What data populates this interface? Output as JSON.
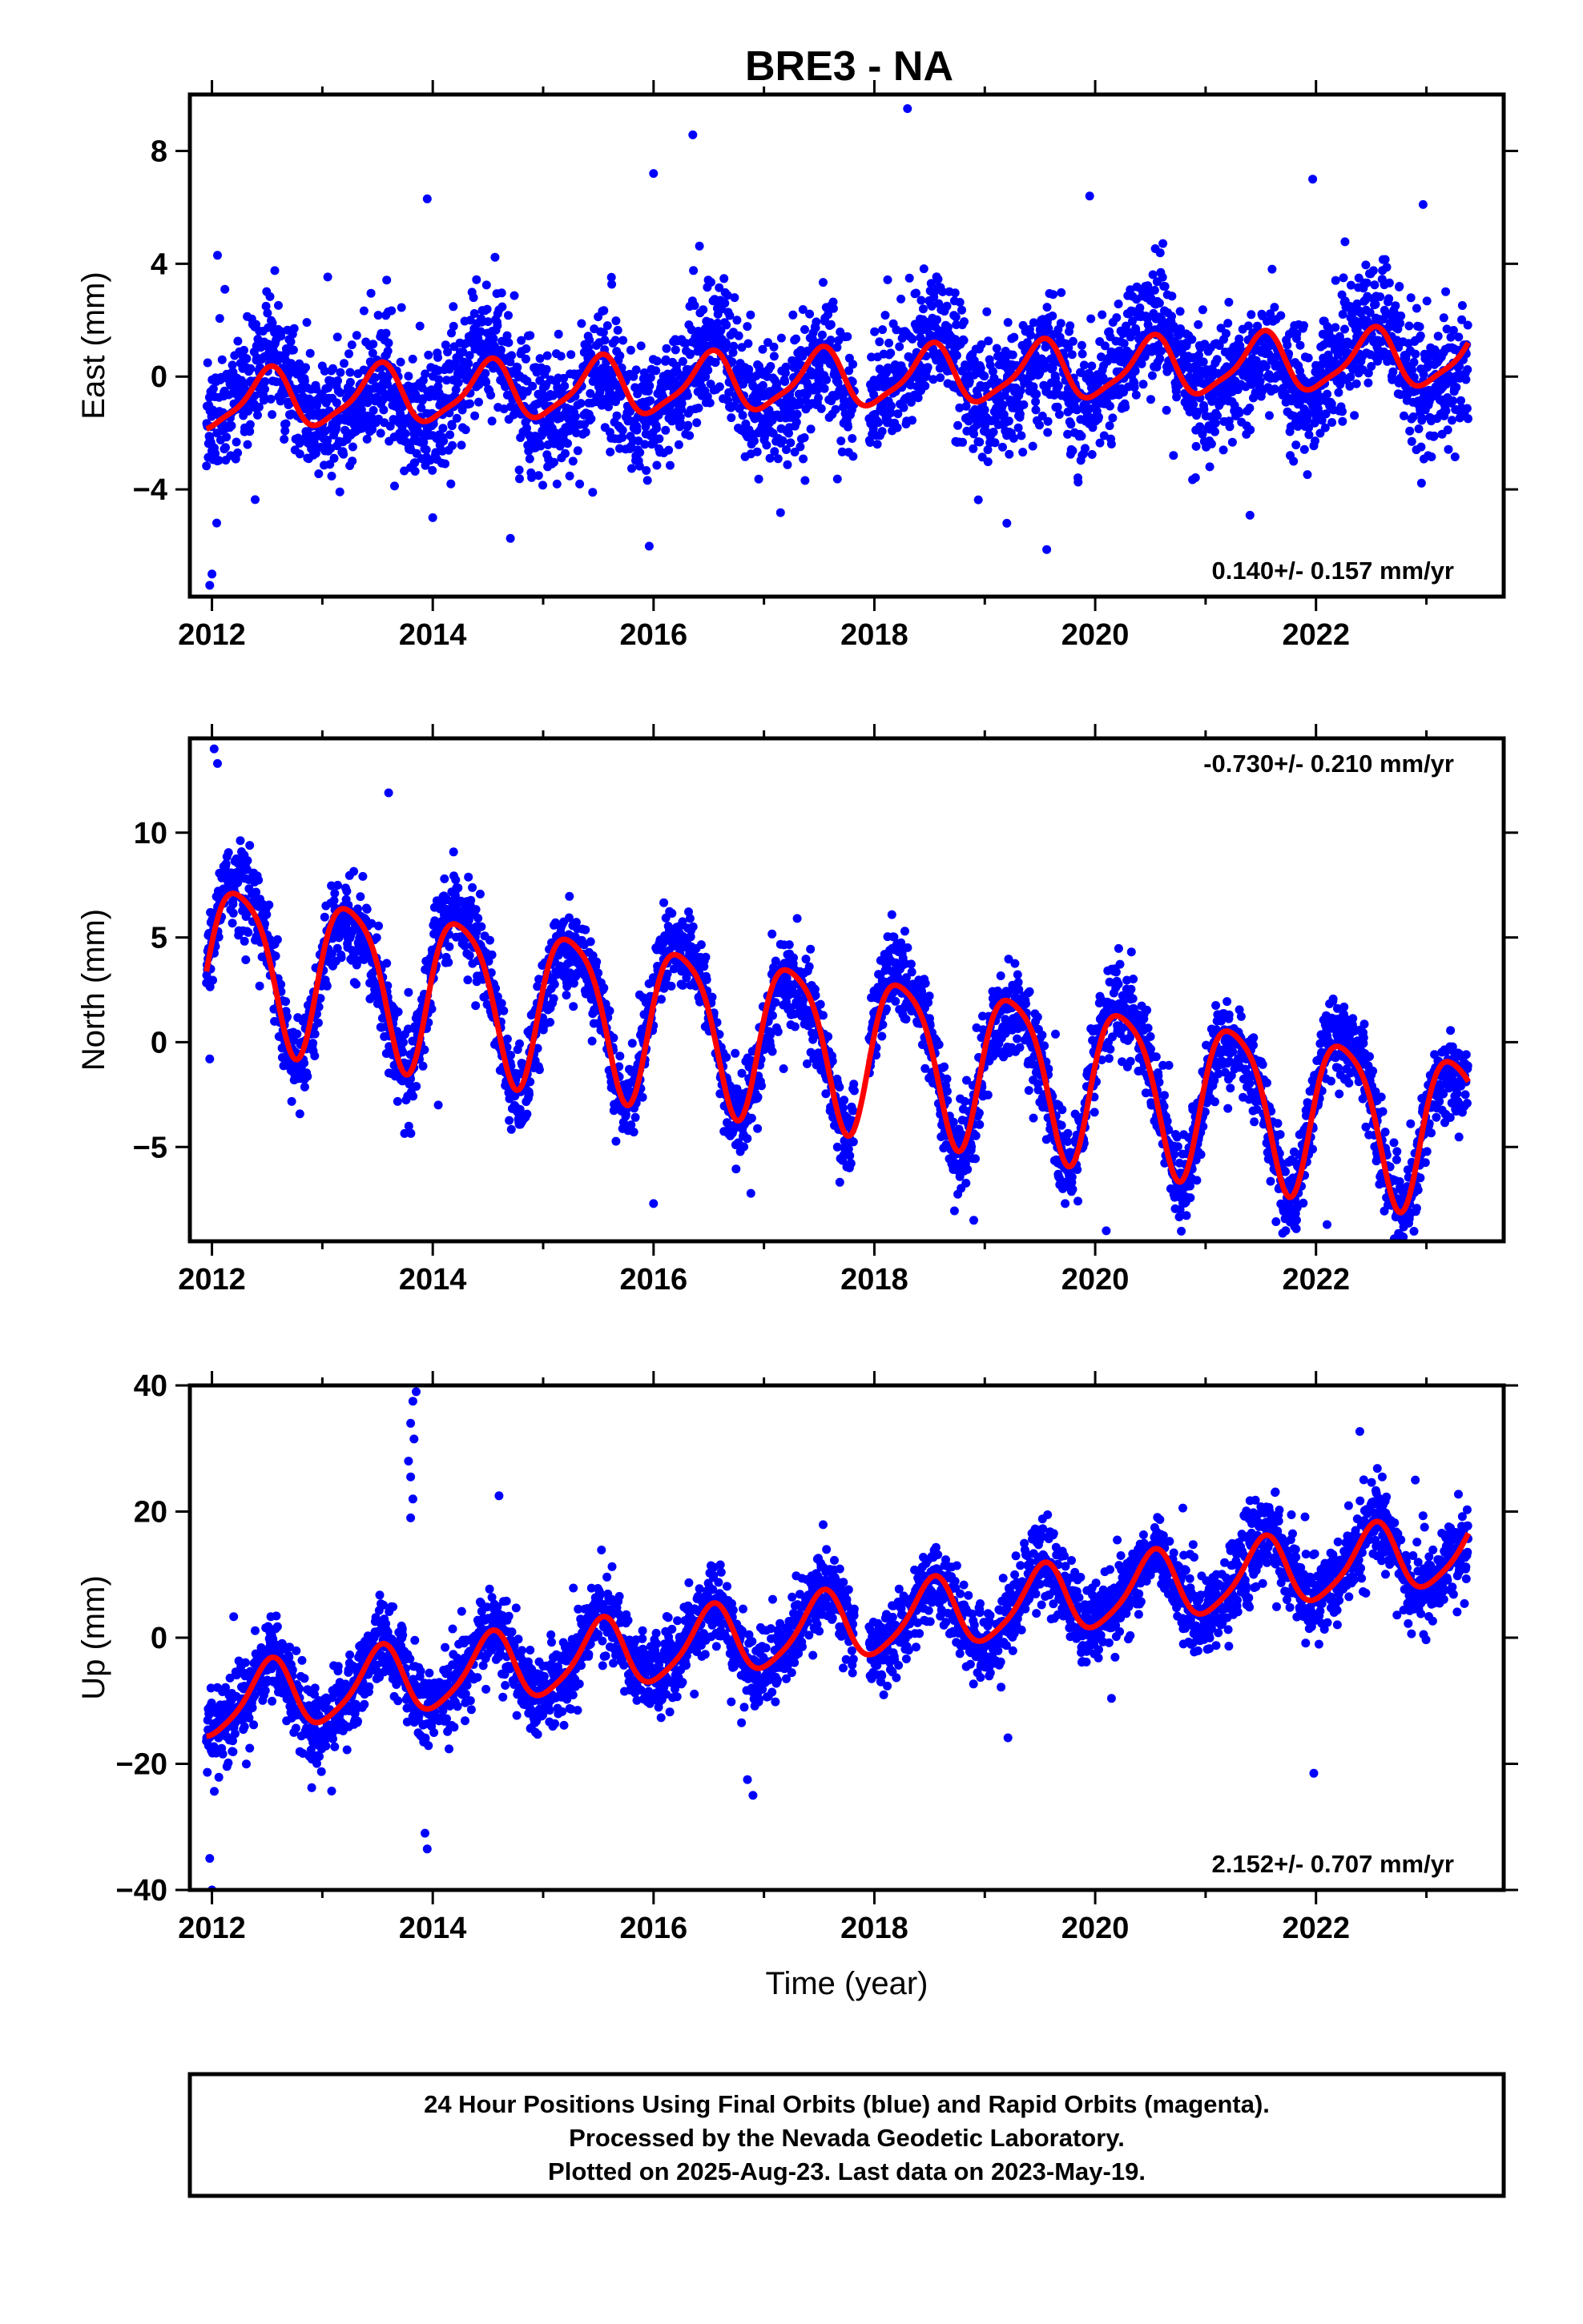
{
  "title": "BRE3 - NA",
  "chart_data": [
    {
      "type": "scatter",
      "panel": "east",
      "ylabel": "East (mm)",
      "xlabel": "",
      "xlim": [
        2011.8,
        2023.7
      ],
      "ylim": [
        -7.8,
        10.0
      ],
      "xticks": [
        2012,
        2014,
        2016,
        2018,
        2020,
        2022
      ],
      "yticks": [
        -4,
        0,
        4,
        8
      ],
      "grid": false,
      "rate_label": "0.140+/- 0.157 mm/yr",
      "rate_position": "bottom-right",
      "model": {
        "t0": 2012.0,
        "offset": -0.9,
        "rate": 0.14,
        "annual_amp": 1.0,
        "annual_phase": -1.6,
        "semi_amp": 0.25,
        "semi_phase": 0.6,
        "noise": 1.1
      },
      "series": [
        {
          "name": "Final Orbits (blue)",
          "color": "#0000ff",
          "kind": "points",
          "t_start": 2011.95,
          "t_end": 2023.38,
          "gap": [
            2017.82,
            2017.95
          ]
        },
        {
          "name": "fit",
          "color": "#ff0000",
          "kind": "line"
        }
      ],
      "outliers": [
        [
          2018.3,
          9.5
        ],
        [
          2016.0,
          7.2
        ],
        [
          2021.97,
          7.0
        ],
        [
          2019.95,
          6.4
        ],
        [
          2013.95,
          6.3
        ],
        [
          2022.97,
          6.1
        ],
        [
          2011.98,
          -7.4
        ],
        [
          2012.0,
          -7.0
        ],
        [
          2014.0,
          -5.0
        ],
        [
          2019.2,
          -5.2
        ],
        [
          2012.05,
          4.3
        ]
      ]
    },
    {
      "type": "scatter",
      "panel": "north",
      "ylabel": "North (mm)",
      "xlabel": "",
      "xlim": [
        2011.8,
        2023.7
      ],
      "ylim": [
        -9.5,
        14.5
      ],
      "xticks": [
        2012,
        2014,
        2016,
        2018,
        2020,
        2022
      ],
      "yticks": [
        -5,
        0,
        5,
        10
      ],
      "grid": false,
      "rate_label": "-0.730+/- 0.210 mm/yr",
      "rate_position": "top-right",
      "model": {
        "t0": 2012.0,
        "offset": 4.1,
        "rate": -0.73,
        "annual_amp": 3.7,
        "annual_phase": 0.0,
        "semi_amp": 0.7,
        "semi_phase": 1.2,
        "noise": 1.0
      },
      "series": [
        {
          "name": "Final Orbits (blue)",
          "color": "#0000ff",
          "kind": "points",
          "t_start": 2011.95,
          "t_end": 2023.38,
          "gap": [
            2017.82,
            2017.95
          ]
        },
        {
          "name": "fit",
          "color": "#ff0000",
          "kind": "line"
        }
      ],
      "outliers": [
        [
          2012.02,
          14.0
        ],
        [
          2012.05,
          13.3
        ],
        [
          2013.6,
          11.9
        ],
        [
          2014.05,
          -3.0
        ],
        [
          2011.98,
          -0.8
        ],
        [
          2020.1,
          -9.0
        ],
        [
          2018.9,
          -8.5
        ],
        [
          2022.1,
          -8.7
        ],
        [
          2016.0,
          -7.7
        ]
      ]
    },
    {
      "type": "scatter",
      "panel": "up",
      "ylabel": "Up (mm)",
      "xlabel": "Time (year)",
      "xlim": [
        2011.8,
        2023.7
      ],
      "ylim": [
        -40.0,
        40.0
      ],
      "xticks": [
        2012,
        2014,
        2016,
        2018,
        2020,
        2022
      ],
      "yticks": [
        -40,
        -20,
        0,
        20,
        40
      ],
      "grid": false,
      "rate_label": "2.152+/- 0.707 mm/yr",
      "rate_position": "bottom-right",
      "model": {
        "t0": 2012.0,
        "offset": -10.5,
        "rate": 2.152,
        "annual_amp": 5.4,
        "annual_phase": -1.7,
        "semi_amp": 1.0,
        "semi_phase": 0.5,
        "noise": 3.2
      },
      "series": [
        {
          "name": "Final Orbits (blue)",
          "color": "#0000ff",
          "kind": "points",
          "t_start": 2011.95,
          "t_end": 2023.38,
          "gap": [
            2017.82,
            2017.95
          ]
        },
        {
          "name": "fit",
          "color": "#ff0000",
          "kind": "line"
        }
      ],
      "outliers": [
        [
          2013.85,
          39.0
        ],
        [
          2013.82,
          37.5
        ],
        [
          2013.8,
          34.0
        ],
        [
          2013.83,
          31.5
        ],
        [
          2013.78,
          28.0
        ],
        [
          2013.8,
          25.5
        ],
        [
          2013.82,
          22.0
        ],
        [
          2013.8,
          19.0
        ],
        [
          2013.95,
          -33.5
        ],
        [
          2013.93,
          -31.0
        ],
        [
          2012.0,
          -40.0
        ],
        [
          2016.85,
          -22.5
        ],
        [
          2016.9,
          -25.0
        ],
        [
          2021.98,
          -21.5
        ],
        [
          2014.6,
          22.5
        ],
        [
          2022.6,
          25.5
        ],
        [
          2022.9,
          25.0
        ],
        [
          2011.98,
          -35.0
        ]
      ]
    }
  ],
  "footer": {
    "line1": "24 Hour Positions Using Final Orbits (blue) and Rapid Orbits (magenta).",
    "line2": "Processed by the Nevada Geodetic Laboratory.",
    "line3": "Plotted on 2025-Aug-23. Last data on 2023-May-19."
  }
}
